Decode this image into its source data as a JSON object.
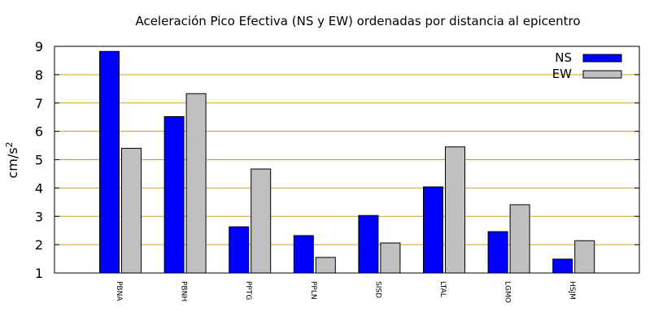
{
  "chart_data": {
    "type": "bar",
    "title": "Aceleración Pico Efectiva (NS y EW) ordenadas por distancia al epicentro",
    "xlabel": "",
    "ylabel": "cm/s",
    "ylabel_superscript": "2",
    "ylim": [
      1,
      9
    ],
    "yticks": [
      "1",
      "2",
      "3",
      "4",
      "5",
      "6",
      "7",
      "8",
      "9"
    ],
    "grid": "horizontal",
    "legend_position": "top-right",
    "categories": [
      "PBNA",
      "PBNH",
      "PPTG",
      "PPLN",
      "SISD",
      "LTAL",
      "LGMO",
      "HSJM"
    ],
    "series": [
      {
        "name": "NS",
        "color": "#0000ff",
        "values": [
          8.82,
          6.52,
          2.63,
          2.32,
          3.03,
          4.04,
          2.46,
          1.49
        ]
      },
      {
        "name": "EW",
        "color": "#c0c0c0",
        "values": [
          5.4,
          7.33,
          4.67,
          1.55,
          2.06,
          5.45,
          3.41,
          2.14
        ]
      }
    ],
    "grid_color": "#d4a017"
  }
}
